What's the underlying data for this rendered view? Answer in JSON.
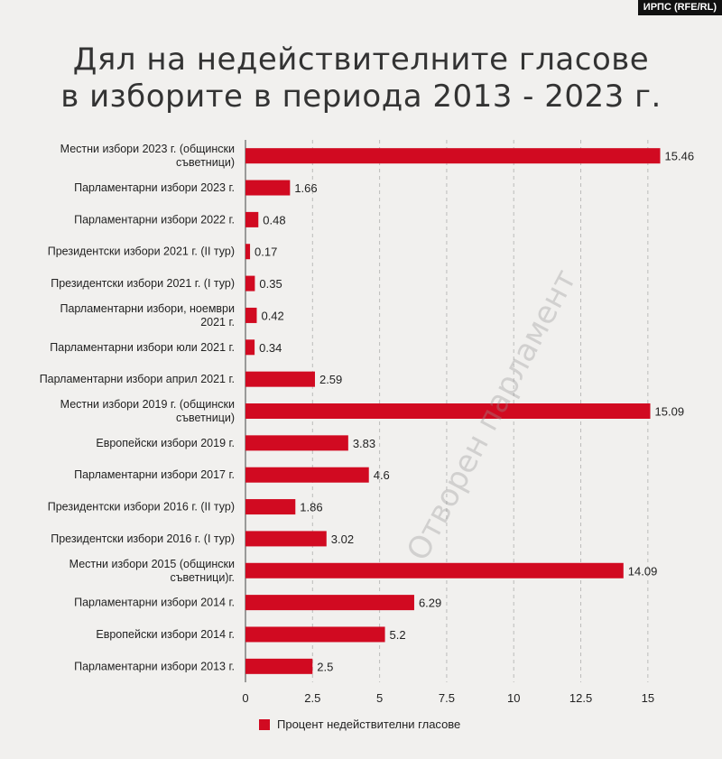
{
  "credit": "ИРПС (RFE/RL)",
  "title_lines": [
    "Дял на недействителните гласове",
    "в изборите в периода 2013 - 2023 г."
  ],
  "watermark": "Отворен парламент",
  "colors": {
    "bar": "#d10a21",
    "grid": "#999999",
    "background": "#f1f0ee"
  },
  "chart_data": {
    "type": "bar",
    "orientation": "horizontal",
    "categories": [
      "Местни избори 2023 г. (общински съветници)",
      "Парламентарни избори 2023 г.",
      "Парламентарни избори 2022 г.",
      "Президентски избори 2021 г. (II тур)",
      "Президентски избори 2021 г. (I тур)",
      "Парламентарни избори, ноември 2021 г.",
      "Парламентарни избори юли 2021 г.",
      "Парламентарни избори април 2021 г.",
      "Местни избори 2019 г. (общински съветници)",
      "Европейски избори 2019 г.",
      "Парламентарни избори 2017 г.",
      "Президентски избори 2016 г. (II тур)",
      "Президентски избори 2016 г. (I тур)",
      "Местни избори 2015 (общински съветници)г.",
      "Парламентарни избори 2014 г.",
      "Европейски избори 2014 г.",
      "Парламентарни избори 2013 г."
    ],
    "category_lines": [
      [
        "Местни избори 2023 г. (общински",
        "съветници)"
      ],
      [
        "Парламентарни избори 2023 г."
      ],
      [
        "Парламентарни избори 2022 г."
      ],
      [
        "Президентски избори 2021 г. (II тур)"
      ],
      [
        "Президентски избори 2021 г. (I тур)"
      ],
      [
        "Парламентарни избори, ноември",
        "2021 г."
      ],
      [
        "Парламентарни избори юли 2021 г."
      ],
      [
        "Парламентарни избори април 2021 г."
      ],
      [
        "Местни избори 2019 г. (общински",
        "съветници)"
      ],
      [
        "Европейски избори 2019 г."
      ],
      [
        "Парламентарни избори 2017 г."
      ],
      [
        "Президентски избори 2016 г. (II тур)"
      ],
      [
        "Президентски избори 2016 г. (I тур)"
      ],
      [
        "Местни избори 2015 (общински",
        "съветници)г."
      ],
      [
        "Парламентарни избори 2014 г."
      ],
      [
        "Европейски избори 2014 г."
      ],
      [
        "Парламентарни избори 2013 г."
      ]
    ],
    "values": [
      15.46,
      1.66,
      0.48,
      0.17,
      0.35,
      0.42,
      0.34,
      2.59,
      15.09,
      3.83,
      4.6,
      1.86,
      3.02,
      14.09,
      6.29,
      5.2,
      2.5
    ],
    "value_labels": [
      "15.46",
      "1.66",
      "0.48",
      "0.17",
      "0.35",
      "0.42",
      "0.34",
      "2.59",
      "15.09",
      "3.83",
      "4.6",
      "1.86",
      "3.02",
      "14.09",
      "6.29",
      "5.2",
      "2.5"
    ],
    "series_name": "Процент недействителни гласове",
    "xticks": [
      "0",
      "2.5",
      "5",
      "7.5",
      "10",
      "12.5",
      "15"
    ],
    "xlim": [
      0,
      16.25
    ],
    "grid": "vertical-dashed",
    "legend": "bottom"
  }
}
